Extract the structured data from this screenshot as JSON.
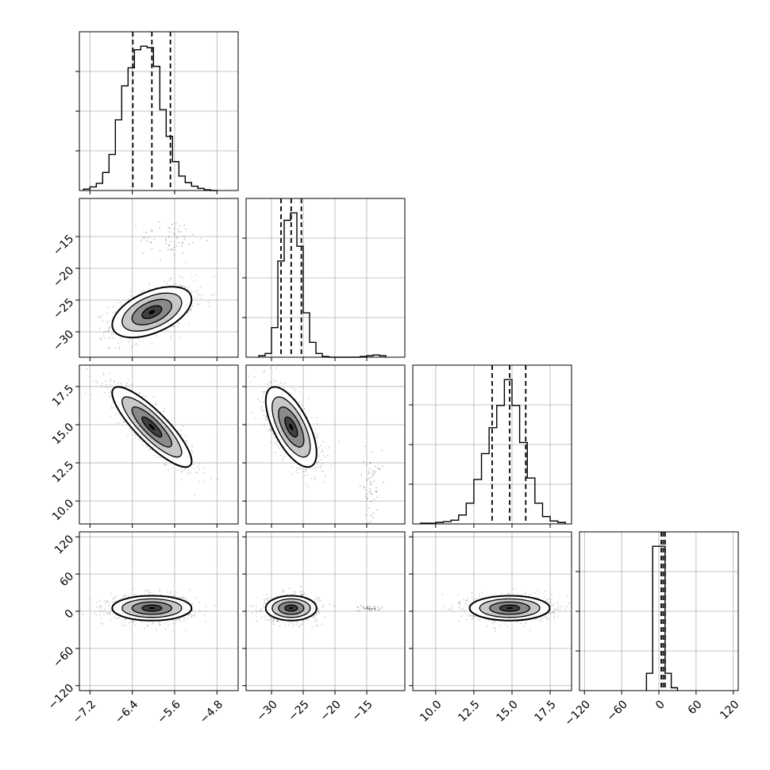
{
  "chart_data": {
    "type": "corner",
    "title": "",
    "grid": true,
    "parameters": [
      {
        "range": [
          -7.4,
          -4.4
        ],
        "ticks": [
          -7.2,
          -6.4,
          -5.6,
          -4.8
        ],
        "tick_labels": [
          "−7.2",
          "−6.4",
          "−5.6",
          "−4.8"
        ],
        "quantiles": [
          -6.39,
          -6.03,
          -5.68
        ]
      },
      {
        "range": [
          -34,
          -9
        ],
        "ticks": [
          -30,
          -25,
          -20,
          -15
        ],
        "tick_labels": [
          "−30",
          "−25",
          "−20",
          "−15"
        ],
        "quantiles": [
          -28.5,
          -26.9,
          -25.3
        ]
      },
      {
        "range": [
          8.5,
          18.9
        ],
        "ticks": [
          10.0,
          12.5,
          15.0,
          17.5
        ],
        "tick_labels": [
          "10.0",
          "12.5",
          "15.0",
          "17.5"
        ],
        "quantiles": [
          13.7,
          14.85,
          15.9
        ]
      },
      {
        "range": [
          -128,
          128
        ],
        "ticks": [
          -120,
          -60,
          0,
          60,
          120
        ],
        "tick_labels": [
          "−120",
          "−60",
          "0",
          "60",
          "120"
        ],
        "quantiles": [
          4,
          7,
          10
        ]
      }
    ],
    "marginals": [
      {
        "bins": [
          -7.32,
          -7.2,
          -7.08,
          -6.96,
          -6.84,
          -6.72,
          -6.6,
          -6.48,
          -6.36,
          -6.24,
          -6.12,
          -6.0,
          -5.88,
          -5.76,
          -5.64,
          -5.52,
          -5.4,
          -5.28,
          -5.16,
          -5.04,
          -4.92,
          -4.8
        ],
        "counts": [
          2,
          5,
          10,
          25,
          50,
          98,
          145,
          170,
          195,
          200,
          198,
          172,
          112,
          75,
          40,
          20,
          11,
          6,
          3,
          1,
          0
        ]
      },
      {
        "bins": [
          -32.0,
          -31.0,
          -30.0,
          -29.0,
          -28.0,
          -27.0,
          -26.0,
          -25.0,
          -24.0,
          -23.0,
          -22.0,
          -21.0,
          -20.0,
          -19.0,
          -18.0,
          -17.0,
          -16.0,
          -15.0,
          -14.0,
          -13.0,
          -12.0
        ],
        "counts": [
          2,
          5,
          40,
          130,
          185,
          195,
          150,
          60,
          20,
          5,
          1,
          0,
          0,
          0,
          0,
          0,
          1,
          2,
          3,
          2
        ]
      },
      {
        "bins": [
          9.0,
          9.5,
          10.0,
          10.5,
          11.0,
          11.5,
          12.0,
          12.5,
          13.0,
          13.5,
          14.0,
          14.5,
          15.0,
          15.5,
          16.0,
          16.5,
          17.0,
          17.5,
          18.0,
          18.5
        ],
        "counts": [
          1,
          1,
          2,
          3,
          5,
          12,
          28,
          60,
          95,
          130,
          160,
          195,
          160,
          110,
          62,
          28,
          10,
          4,
          2
        ]
      },
      {
        "bins": [
          -20,
          -10,
          0,
          10,
          20,
          30
        ],
        "counts": [
          12,
          100,
          100,
          12,
          2
        ]
      }
    ],
    "panels_2d": [
      {
        "x_param": 0,
        "y_param": 1,
        "center": [
          -6.03,
          -26.9
        ],
        "sigma": [
          0.3,
          1.6
        ],
        "rho": 0.5,
        "extra_cloud": {
          "center": [
            -5.65,
            -15.3
          ],
          "spread": [
            0.3,
            1.5
          ],
          "n": 60
        }
      },
      {
        "x_param": 0,
        "y_param": 2,
        "center": [
          -6.03,
          14.85
        ],
        "sigma": [
          0.3,
          1.05
        ],
        "rho": -0.85
      },
      {
        "x_param": 1,
        "y_param": 2,
        "center": [
          -26.9,
          14.85
        ],
        "sigma": [
          1.6,
          1.05
        ],
        "rho": -0.65,
        "extra_cloud": {
          "center": [
            -14.3,
            11.0
          ],
          "spread": [
            0.8,
            1.2
          ],
          "n": 60
        }
      },
      {
        "x_param": 0,
        "y_param": 3,
        "center": [
          -6.03,
          5.0
        ],
        "sigma": [
          0.3,
          8
        ],
        "rho": 0.0
      },
      {
        "x_param": 1,
        "y_param": 3,
        "center": [
          -26.9,
          5.0
        ],
        "sigma": [
          1.6,
          8
        ],
        "rho": 0.0,
        "extra_cloud": {
          "center": [
            -14.3,
            5.0
          ],
          "spread": [
            1.0,
            2.0
          ],
          "n": 40
        }
      },
      {
        "x_param": 2,
        "y_param": 3,
        "center": [
          14.85,
          5.0
        ],
        "sigma": [
          1.05,
          8
        ],
        "rho": 0.0
      }
    ],
    "contour_sigma_levels": [
      0.5,
      1.0,
      1.5,
      2.0
    ],
    "scatter_points_per_panel": 900,
    "colors": {
      "line": "#000000",
      "grid": "#b0b0b0",
      "point": "#000000",
      "fill_dark": "#404040",
      "fill_mid": "#8a8a8a",
      "fill_light": "#c8c8c8"
    }
  }
}
